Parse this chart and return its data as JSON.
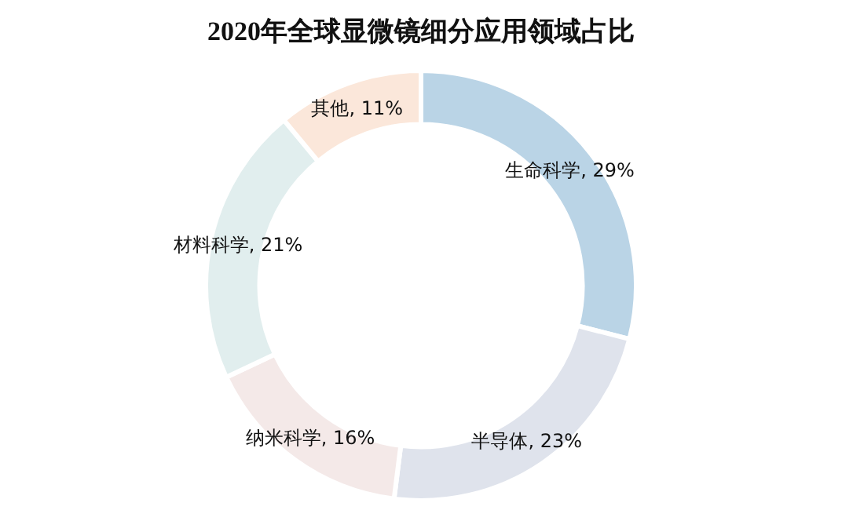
{
  "chart_data": {
    "type": "donut",
    "title": "2020年全球显微镜细分应用领域占比",
    "categories": [
      "生命科学",
      "半导体",
      "纳米科学",
      "材料科学",
      "其他"
    ],
    "values": [
      29,
      23,
      16,
      21,
      11
    ],
    "colors": [
      "#bad4e6",
      "#dfe3ec",
      "#f4e9e8",
      "#e1eeee",
      "#fbe7da"
    ],
    "value_labels": [
      "29%",
      "23%",
      "16%",
      "21%",
      "11%"
    ],
    "legend": false
  }
}
